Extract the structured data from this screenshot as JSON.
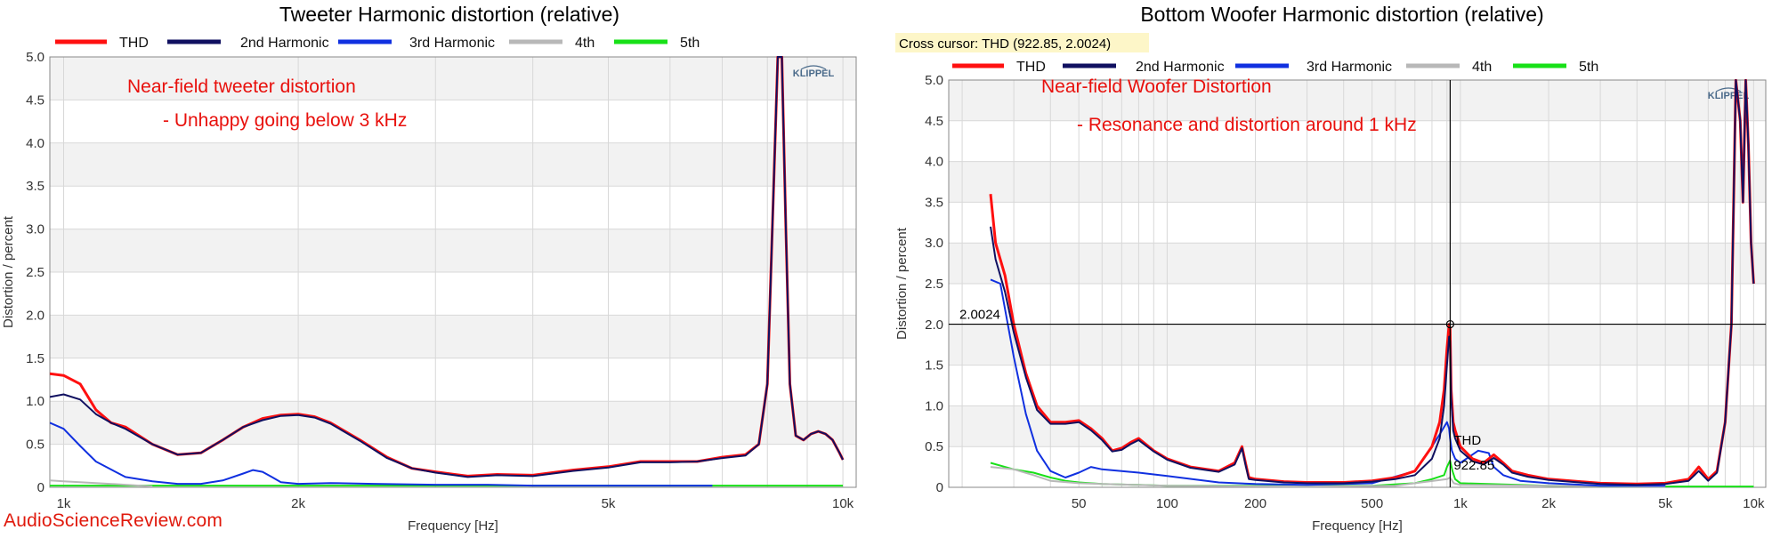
{
  "watermark": "AudioScienceReview.com",
  "colors": {
    "thd": "#ff1010",
    "h2": "#101060",
    "h3": "#1030e0",
    "h4": "#b8b8b8",
    "h5": "#18e018",
    "annotation": "#e8100c",
    "band": "#f2f2f2",
    "grid": "#d8d8d8",
    "cursor": "#000000",
    "cursor_box": "#fdf6c8"
  },
  "chart_data": [
    {
      "type": "line",
      "title": "Tweeter Harmonic distortion (relative)",
      "xlabel": "Frequency [Hz]",
      "ylabel": "Distortion / percent",
      "xscale": "log",
      "xlim": [
        960,
        10400
      ],
      "ylim": [
        0,
        5
      ],
      "yticks": [
        "0",
        "0.5",
        "1.0",
        "1.5",
        "2.0",
        "2.5",
        "3.0",
        "3.5",
        "4.0",
        "4.5",
        "5.0"
      ],
      "xticks": [
        {
          "v": 1000,
          "label": "1k"
        },
        {
          "v": 2000,
          "label": "2k"
        },
        {
          "v": 5000,
          "label": "5k"
        },
        {
          "v": 10000,
          "label": "10k"
        }
      ],
      "grid": true,
      "legend_position": "top",
      "logo": "KLIPPEL",
      "annotations": [
        "Near-field tweeter distortion",
        "- Unhappy going below 3 kHz"
      ],
      "series": [
        {
          "name": "THD",
          "color": "thd",
          "x": [
            960,
            1000,
            1050,
            1100,
            1150,
            1200,
            1300,
            1400,
            1500,
            1600,
            1700,
            1800,
            1900,
            2000,
            2100,
            2200,
            2400,
            2600,
            2800,
            3000,
            3300,
            3600,
            4000,
            4500,
            5000,
            5500,
            6000,
            6500,
            7000,
            7500,
            7800,
            8000,
            8150,
            8250,
            8350,
            8450,
            8550,
            8700,
            8900,
            9100,
            9300,
            9500,
            9700,
            9900,
            10000
          ],
          "y": [
            1.32,
            1.3,
            1.2,
            0.9,
            0.75,
            0.7,
            0.5,
            0.38,
            0.4,
            0.55,
            0.7,
            0.8,
            0.84,
            0.85,
            0.82,
            0.75,
            0.55,
            0.35,
            0.22,
            0.18,
            0.13,
            0.15,
            0.14,
            0.2,
            0.24,
            0.3,
            0.3,
            0.3,
            0.35,
            0.38,
            0.5,
            1.2,
            3.5,
            5.0,
            5.0,
            3.0,
            1.2,
            0.6,
            0.55,
            0.62,
            0.65,
            0.62,
            0.55,
            0.4,
            0.32
          ]
        },
        {
          "name": "2nd Harmonic",
          "color": "h2",
          "x": [
            960,
            1000,
            1050,
            1100,
            1150,
            1200,
            1300,
            1400,
            1500,
            1600,
            1700,
            1800,
            1900,
            2000,
            2100,
            2200,
            2400,
            2600,
            2800,
            3000,
            3300,
            3600,
            4000,
            4500,
            5000,
            5500,
            6000,
            6500,
            7000,
            7500,
            7800,
            8000,
            8150,
            8250,
            8350,
            8450,
            8550,
            8700,
            8900,
            9100,
            9300,
            9500,
            9700,
            9900,
            10000
          ],
          "y": [
            1.05,
            1.08,
            1.02,
            0.85,
            0.75,
            0.68,
            0.5,
            0.38,
            0.4,
            0.55,
            0.7,
            0.78,
            0.83,
            0.84,
            0.81,
            0.74,
            0.54,
            0.34,
            0.22,
            0.17,
            0.12,
            0.14,
            0.13,
            0.19,
            0.23,
            0.29,
            0.29,
            0.3,
            0.34,
            0.37,
            0.5,
            1.2,
            3.5,
            5.0,
            5.0,
            3.0,
            1.2,
            0.6,
            0.55,
            0.62,
            0.65,
            0.62,
            0.55,
            0.4,
            0.32
          ]
        },
        {
          "name": "3rd Harmonic",
          "color": "h3",
          "x": [
            960,
            1000,
            1050,
            1100,
            1200,
            1300,
            1400,
            1500,
            1600,
            1700,
            1750,
            1800,
            1850,
            1900,
            2000,
            2200,
            2500,
            3000,
            3500,
            4000,
            5000,
            6000,
            6800
          ],
          "y": [
            0.75,
            0.68,
            0.48,
            0.3,
            0.12,
            0.07,
            0.04,
            0.04,
            0.08,
            0.16,
            0.2,
            0.18,
            0.12,
            0.06,
            0.04,
            0.05,
            0.04,
            0.03,
            0.03,
            0.02,
            0.02,
            0.02,
            0.02
          ]
        },
        {
          "name": "4th",
          "color": "h4",
          "x": [
            960,
            1000,
            1100,
            1200,
            1300
          ],
          "y": [
            0.08,
            0.07,
            0.05,
            0.03,
            0.01
          ]
        },
        {
          "name": "5th",
          "color": "h5",
          "x": [
            960,
            2000,
            5000,
            10000
          ],
          "y": [
            0.02,
            0.02,
            0.02,
            0.02
          ]
        }
      ]
    },
    {
      "type": "line",
      "title": "Bottom Woofer Harmonic distortion (relative)",
      "xlabel": "Frequency [Hz]",
      "ylabel": "Distortion / percent",
      "xscale": "log",
      "xlim": [
        18,
        11000
      ],
      "ylim": [
        0,
        5
      ],
      "yticks": [
        "0",
        "0.5",
        "1.0",
        "1.5",
        "2.0",
        "2.5",
        "3.0",
        "3.5",
        "4.0",
        "4.5",
        "5.0"
      ],
      "xticks": [
        {
          "v": 50,
          "label": "50"
        },
        {
          "v": 100,
          "label": "100"
        },
        {
          "v": 200,
          "label": "200"
        },
        {
          "v": 500,
          "label": "500"
        },
        {
          "v": 1000,
          "label": "1k"
        },
        {
          "v": 2000,
          "label": "2k"
        },
        {
          "v": 5000,
          "label": "5k"
        },
        {
          "v": 10000,
          "label": "10k"
        }
      ],
      "grid": true,
      "legend_position": "top",
      "logo": "KLIPPEL",
      "cursor_readout": "Cross cursor: THD (922.85, 2.0024)",
      "cursor": {
        "x": 922.85,
        "y": 2.0024,
        "y_label": "2.0024",
        "x_label": "922.85",
        "series_label": "THD"
      },
      "annotations": [
        "Near-field Woofer Distortion",
        "- Resonance and distortion around 1 kHz"
      ],
      "series": [
        {
          "name": "THD",
          "color": "thd",
          "x": [
            25,
            26,
            28,
            30,
            33,
            36,
            40,
            45,
            50,
            55,
            60,
            65,
            70,
            75,
            80,
            90,
            100,
            120,
            150,
            170,
            180,
            185,
            190,
            200,
            250,
            300,
            400,
            500,
            600,
            700,
            800,
            850,
            880,
            900,
            915,
            922,
            930,
            945,
            960,
            1000,
            1100,
            1200,
            1300,
            1400,
            1500,
            1700,
            2000,
            3000,
            4000,
            5000,
            6000,
            6500,
            7000,
            7500,
            8000,
            8400,
            8700,
            9000,
            9200,
            9400,
            9600,
            9800,
            10000
          ],
          "y": [
            3.6,
            3.0,
            2.6,
            2.0,
            1.4,
            1.0,
            0.8,
            0.8,
            0.82,
            0.72,
            0.6,
            0.45,
            0.48,
            0.55,
            0.6,
            0.45,
            0.35,
            0.25,
            0.2,
            0.3,
            0.5,
            0.3,
            0.12,
            0.1,
            0.07,
            0.06,
            0.06,
            0.08,
            0.12,
            0.2,
            0.5,
            0.8,
            1.2,
            1.7,
            2.0,
            1.95,
            1.2,
            0.8,
            0.7,
            0.5,
            0.35,
            0.3,
            0.4,
            0.3,
            0.2,
            0.15,
            0.1,
            0.05,
            0.04,
            0.05,
            0.1,
            0.25,
            0.1,
            0.2,
            0.8,
            2.0,
            5.0,
            4.5,
            3.5,
            5.0,
            4.2,
            3.0,
            2.5
          ]
        },
        {
          "name": "2nd Harmonic",
          "color": "h2",
          "x": [
            25,
            26,
            28,
            30,
            33,
            36,
            40,
            45,
            50,
            55,
            60,
            65,
            70,
            75,
            80,
            90,
            100,
            120,
            150,
            170,
            180,
            185,
            190,
            200,
            250,
            300,
            400,
            500,
            600,
            700,
            800,
            850,
            880,
            900,
            915,
            922,
            930,
            945,
            960,
            1000,
            1100,
            1200,
            1300,
            1400,
            1500,
            1700,
            2000,
            3000,
            4000,
            5000,
            6000,
            6500,
            7000,
            7500,
            8000,
            8400,
            8700,
            9000,
            9200,
            9400,
            9600,
            9800,
            10000
          ],
          "y": [
            3.2,
            2.8,
            2.4,
            1.9,
            1.35,
            0.95,
            0.78,
            0.78,
            0.8,
            0.7,
            0.58,
            0.44,
            0.46,
            0.53,
            0.58,
            0.44,
            0.34,
            0.24,
            0.19,
            0.28,
            0.48,
            0.28,
            0.1,
            0.09,
            0.06,
            0.05,
            0.05,
            0.07,
            0.1,
            0.15,
            0.35,
            0.6,
            1.0,
            1.5,
            1.85,
            1.8,
            1.1,
            0.7,
            0.6,
            0.45,
            0.32,
            0.28,
            0.36,
            0.28,
            0.18,
            0.13,
            0.09,
            0.04,
            0.03,
            0.04,
            0.08,
            0.2,
            0.08,
            0.18,
            0.8,
            2.0,
            5.0,
            4.5,
            3.5,
            5.0,
            4.2,
            3.0,
            2.5
          ]
        },
        {
          "name": "3rd Harmonic",
          "color": "h3",
          "x": [
            25,
            27,
            30,
            33,
            36,
            40,
            45,
            50,
            55,
            60,
            70,
            80,
            100,
            150,
            200,
            300,
            500,
            700,
            800,
            850,
            900,
            915,
            922,
            935,
            960,
            1000,
            1150,
            1250,
            1300,
            1400,
            1600,
            2000,
            3000,
            5000
          ],
          "y": [
            2.55,
            2.5,
            1.6,
            0.9,
            0.45,
            0.2,
            0.12,
            0.18,
            0.25,
            0.22,
            0.2,
            0.18,
            0.14,
            0.06,
            0.04,
            0.03,
            0.05,
            0.2,
            0.5,
            0.65,
            0.8,
            0.72,
            0.6,
            0.45,
            0.35,
            0.3,
            0.45,
            0.42,
            0.25,
            0.15,
            0.08,
            0.05,
            0.02,
            0.02
          ]
        },
        {
          "name": "4th",
          "color": "h4",
          "x": [
            25,
            30,
            35,
            40,
            50,
            60,
            100,
            300,
            600,
            900,
            922,
            950,
            1000,
            2000,
            5000
          ],
          "y": [
            0.25,
            0.22,
            0.15,
            0.08,
            0.05,
            0.04,
            0.02,
            0.01,
            0.02,
            0.1,
            0.12,
            0.05,
            0.03,
            0.02,
            0.01
          ]
        },
        {
          "name": "5th",
          "color": "h5",
          "x": [
            25,
            28,
            30,
            35,
            40,
            45,
            50,
            60,
            80,
            100,
            200,
            500,
            700,
            800,
            880,
            900,
            922,
            940,
            960,
            1000,
            2000,
            5000,
            10000
          ],
          "y": [
            0.3,
            0.25,
            0.22,
            0.18,
            0.12,
            0.08,
            0.06,
            0.04,
            0.03,
            0.02,
            0.02,
            0.02,
            0.05,
            0.1,
            0.15,
            0.25,
            0.33,
            0.2,
            0.1,
            0.05,
            0.02,
            0.01,
            0.01
          ]
        }
      ]
    }
  ]
}
